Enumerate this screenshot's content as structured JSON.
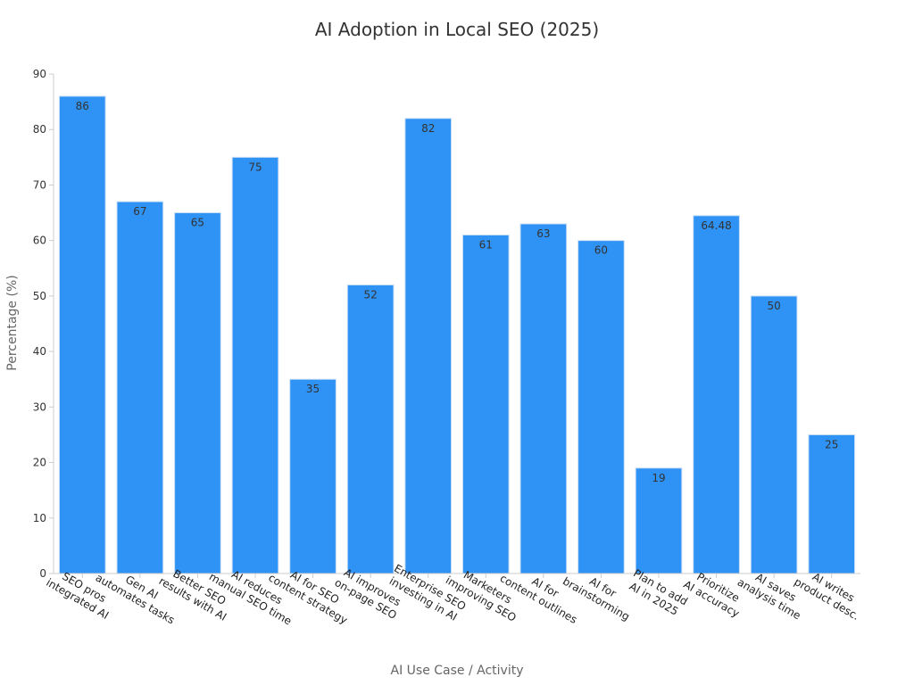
{
  "chart_data": {
    "type": "bar",
    "title": "AI Adoption in Local SEO (2025)",
    "xlabel": "AI Use Case / Activity",
    "ylabel": "Percentage (%)",
    "ylim": [
      0,
      90
    ],
    "yticks": [
      "0",
      "10",
      "20",
      "30",
      "40",
      "50",
      "60",
      "70",
      "80",
      "90"
    ],
    "grid": false,
    "colors": {
      "bar": "#2f92f5",
      "bar_edge": "#c9def5",
      "axis": "#cccccc"
    },
    "categories": [
      [
        "SEO pros",
        "integrated AI"
      ],
      [
        "Gen AI",
        "automates tasks"
      ],
      [
        "Better SEO",
        "results with AI"
      ],
      [
        "AI reduces",
        "manual SEO time"
      ],
      [
        "AI for SEO",
        "content strategy"
      ],
      [
        "AI improves",
        "on-page SEO"
      ],
      [
        "Enterprise SEO",
        "investing in AI"
      ],
      [
        "Marketers",
        "improving SEO"
      ],
      [
        "AI for",
        "content outlines"
      ],
      [
        "AI for",
        "brainstorming"
      ],
      [
        "Plan to add",
        "AI in 2025"
      ],
      [
        "Prioritize",
        "AI accuracy"
      ],
      [
        "AI saves",
        "analysis time"
      ],
      [
        "AI writes",
        "product desc."
      ]
    ],
    "values": [
      86,
      67,
      65,
      75,
      35,
      52,
      82,
      61,
      63,
      60,
      19,
      64.48,
      50,
      25
    ]
  }
}
